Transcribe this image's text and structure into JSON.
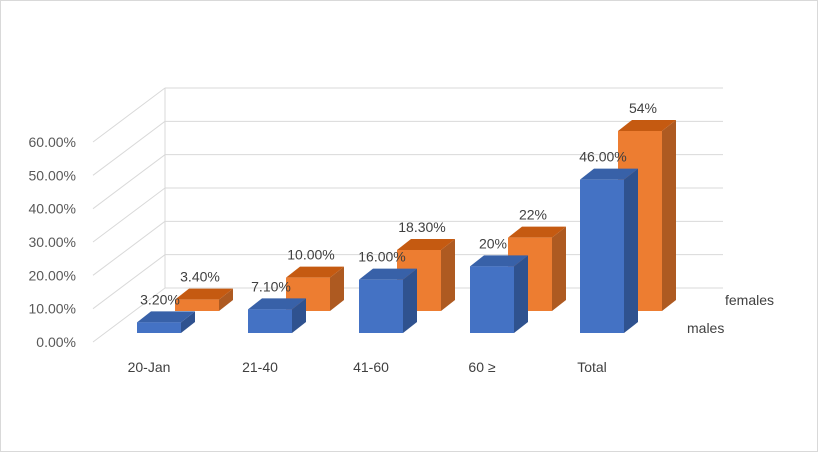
{
  "chart_data": {
    "type": "bar",
    "subtype": "3d-clustered-column",
    "title": "",
    "xlabel": "",
    "ylabel": "",
    "categories": [
      "20-Jan",
      "21-40",
      "41-60",
      "60 ≥",
      "Total"
    ],
    "series": [
      {
        "name": "males",
        "values": [
          3.2,
          7.1,
          16.0,
          20.0,
          46.0
        ],
        "labels": [
          "3.20%",
          "7.10%",
          "16.00%",
          "20%",
          "46.00%"
        ],
        "color": "#4472c4",
        "side_color": "#2f528f",
        "top_color": "#3861a8"
      },
      {
        "name": "females",
        "values": [
          3.4,
          10.0,
          18.3,
          22.0,
          54.0
        ],
        "labels": [
          "3.40%",
          "10.00%",
          "18.30%",
          "22%",
          "54%"
        ],
        "color": "#ed7d31",
        "side_color": "#ae5a21",
        "top_color": "#c55a11"
      }
    ],
    "yticks": [
      "0.00%",
      "10.00%",
      "20.00%",
      "30.00%",
      "40.00%",
      "50.00%",
      "60.00%"
    ],
    "ylim": [
      0,
      60
    ],
    "grid": true,
    "legend": "series labels on depth axis, right"
  }
}
